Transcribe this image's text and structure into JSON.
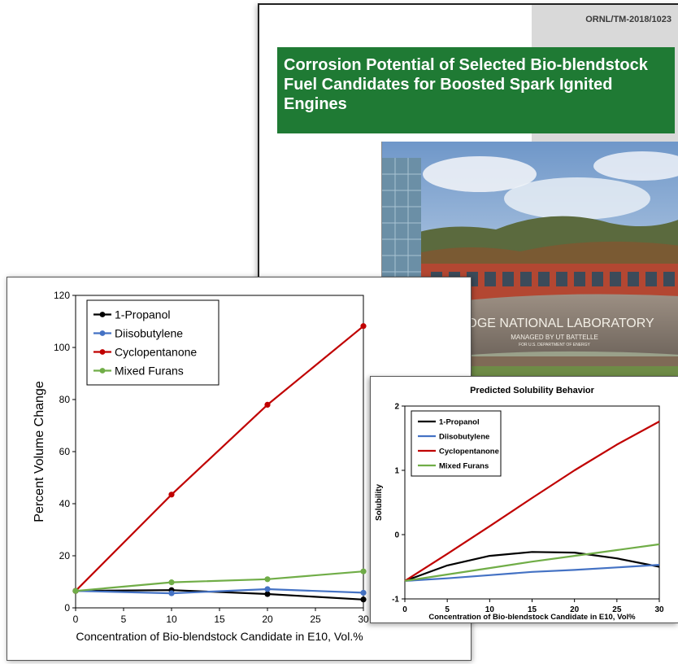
{
  "cover": {
    "report_number": "ORNL/TM-2018/1023",
    "title": "Corrosion Potential of Selected Bio-blendstock Fuel Candidates for Boosted Spark Ignited Engines",
    "photo": {
      "sign_text": "RIDGE NATIONAL LABORATORY",
      "sign_sub1": "MANAGED BY UT BATTELLE",
      "sign_sub2": "FOR U.S. DEPARTMENT OF ENERGY"
    },
    "colors": {
      "title_green": "#1f7a34",
      "band_grey": "#d9d9d9"
    }
  },
  "chart_data": [
    {
      "id": "main",
      "type": "line",
      "title": "",
      "xlabel": "Concentration of Bio-blendstock Candidate in E10, Vol.%",
      "ylabel": "Percent Volume Change",
      "xlim": [
        0,
        30
      ],
      "ylim": [
        0,
        120
      ],
      "xticks": [
        0,
        5,
        10,
        15,
        20,
        25,
        30
      ],
      "yticks": [
        0,
        20,
        40,
        60,
        80,
        100,
        120
      ],
      "x": [
        0,
        10,
        20,
        30
      ],
      "markers": true,
      "grid": false,
      "legend_position": "top-left",
      "series": [
        {
          "name": "1-Propanol",
          "color": "#000000",
          "values": [
            6.5,
            6.8,
            5.3,
            3.2
          ]
        },
        {
          "name": "Diisobutylene",
          "color": "#4472c4",
          "values": [
            6.5,
            5.6,
            7.2,
            5.8
          ]
        },
        {
          "name": "Cyclopentanone",
          "color": "#c00000",
          "values": [
            6.5,
            43.5,
            78.0,
            108.2
          ]
        },
        {
          "name": "Mixed Furans",
          "color": "#70ad47",
          "values": [
            6.5,
            9.8,
            11.0,
            14.0
          ]
        }
      ]
    },
    {
      "id": "inset",
      "type": "line",
      "title": "Predicted Solubility Behavior",
      "xlabel": "Concentration of Bio-blendstock Candidate in E10, Vol%",
      "ylabel": "Solubility",
      "xlim": [
        0,
        30
      ],
      "ylim": [
        -1,
        2
      ],
      "xticks": [
        0,
        5,
        10,
        15,
        20,
        25,
        30
      ],
      "yticks": [
        -1,
        0,
        1,
        2
      ],
      "x": [
        0,
        5,
        10,
        15,
        20,
        25,
        30
      ],
      "markers": false,
      "grid": false,
      "legend_position": "top-left",
      "series": [
        {
          "name": "1-Propanol",
          "color": "#000000",
          "values": [
            -0.72,
            -0.48,
            -0.33,
            -0.27,
            -0.28,
            -0.37,
            -0.5
          ]
        },
        {
          "name": "Diisobutylene",
          "color": "#4472c4",
          "values": [
            -0.72,
            -0.68,
            -0.63,
            -0.58,
            -0.55,
            -0.51,
            -0.47
          ]
        },
        {
          "name": "Cyclopentanone",
          "color": "#c00000",
          "values": [
            -0.72,
            -0.3,
            0.13,
            0.57,
            1.0,
            1.4,
            1.76
          ]
        },
        {
          "name": "Mixed Furans",
          "color": "#70ad47",
          "values": [
            -0.72,
            -0.62,
            -0.52,
            -0.42,
            -0.33,
            -0.24,
            -0.15
          ]
        }
      ]
    }
  ]
}
